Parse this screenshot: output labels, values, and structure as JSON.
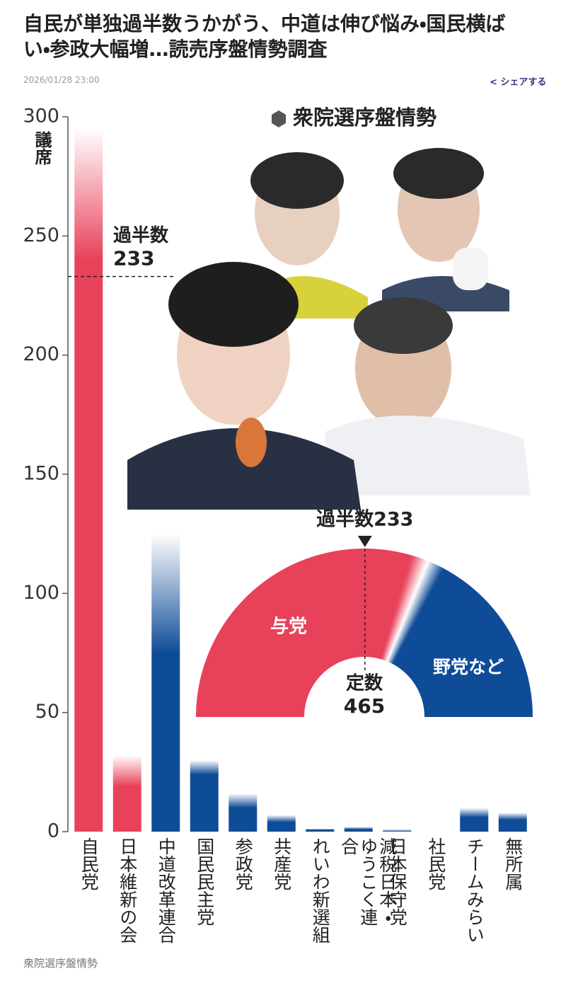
{
  "article": {
    "title": "自民が単独過半数うかがう、中道は伸び悩み・国民横ばい・参政大幅増…読売序盤情勢調査",
    "date": "2026/01/28 23:00",
    "share": "シェアする",
    "caption": "衆院選序盤情勢"
  },
  "chart_data": {
    "type": "bar",
    "title": "衆院選序盤情勢",
    "y_label": "議席",
    "categories": [
      "自民党",
      "日本維新の会",
      "中道改革連合",
      "国民民主党",
      "参政党",
      "共産党",
      "れいわ新選組",
      "減税日本・ゆうこく連合",
      "日本保守党",
      "社民党",
      "チームみらい",
      "無所属"
    ],
    "values": [
      240,
      19,
      75,
      24,
      10,
      4,
      1,
      1,
      0,
      0,
      6,
      5
    ],
    "upper": [
      295,
      32,
      125,
      30,
      16,
      7,
      1,
      2,
      1,
      0,
      10,
      8
    ],
    "colors": [
      "#e8415a",
      "#e8415a",
      "#0f4c97",
      "#0f4c97",
      "#0f4c97",
      "#0f4c97",
      "#0f4c97",
      "#0f4c97",
      "#0f4c97",
      "#0f4c97",
      "#0f4c97",
      "#0f4c97"
    ],
    "ylim": [
      0,
      300
    ],
    "yticks": [
      0,
      50,
      100,
      150,
      200,
      250,
      300
    ],
    "majority_line": {
      "label": "過半数",
      "value": 233
    },
    "semicircle": {
      "total_label": "定数",
      "total": 465,
      "majority_label": "過半数233",
      "majority": 233,
      "ruling_label": "与党",
      "opposition_label": "野党など",
      "ruling_range": [
        275,
        305
      ],
      "ruling_color": "#e8415a",
      "opposition_color": "#0f4c97"
    }
  }
}
